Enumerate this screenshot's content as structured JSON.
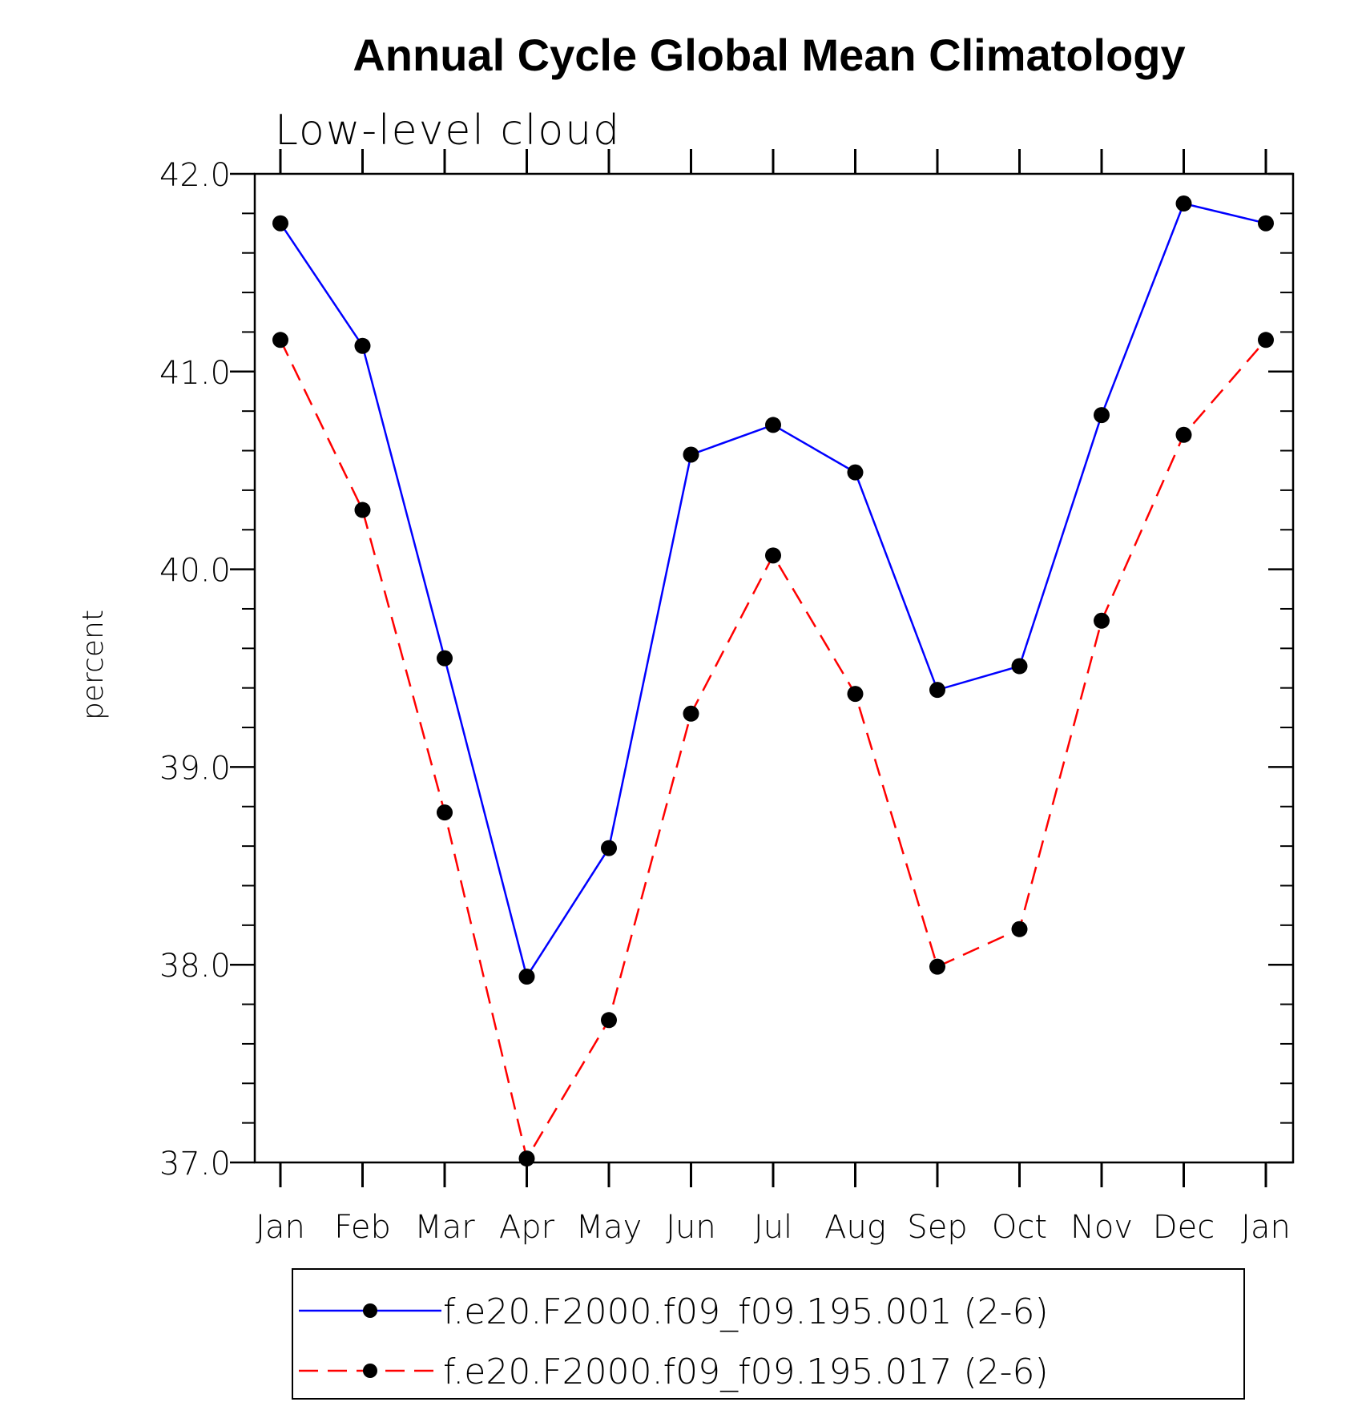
{
  "chart_data": {
    "type": "line",
    "title": "Annual Cycle Global Mean Climatology",
    "subtitle": "Low-level cloud",
    "xlabel": "",
    "ylabel": "percent",
    "categories": [
      "Jan",
      "Feb",
      "Mar",
      "Apr",
      "May",
      "Jun",
      "Jul",
      "Aug",
      "Sep",
      "Oct",
      "Nov",
      "Dec",
      "Jan"
    ],
    "ylim": [
      37.0,
      42.0
    ],
    "yticks": [
      "37.0",
      "38.0",
      "39.0",
      "40.0",
      "41.0",
      "42.0"
    ],
    "grid": false,
    "legend_position": "bottom",
    "series": [
      {
        "name": "f.e20.F2000.f09_f09.195.001 (2-6)",
        "color": "#0000ff",
        "line_style": "solid",
        "marker": "filled-circle",
        "values": [
          41.75,
          41.13,
          39.55,
          37.94,
          38.59,
          40.58,
          40.73,
          40.49,
          39.39,
          39.51,
          40.78,
          41.85,
          41.75
        ]
      },
      {
        "name": "f.e20.F2000.f09_f09.195.017 (2-6)",
        "color": "#ff0000",
        "line_style": "dashed",
        "marker": "filled-circle",
        "values": [
          41.16,
          40.3,
          38.77,
          37.02,
          37.72,
          39.27,
          40.07,
          39.37,
          37.99,
          38.18,
          39.74,
          40.68,
          41.16
        ]
      }
    ]
  }
}
